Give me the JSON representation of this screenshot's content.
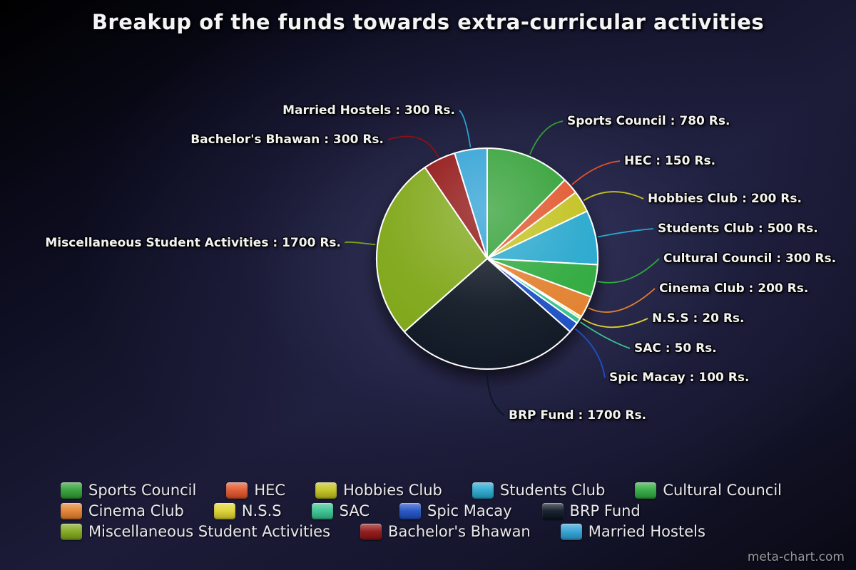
{
  "title": "Breakup of the funds towards extra-curricular activities",
  "watermark": "meta-chart.com",
  "chart_data": {
    "type": "pie",
    "title": "Breakup of the funds towards extra-curricular activities",
    "unit_suffix": "Rs.",
    "label_separator": " : ",
    "start_angle_deg": 0,
    "direction": "clockwise",
    "legend_position": "bottom",
    "slices": [
      {
        "label": "Sports Council",
        "value": 780,
        "color": "#2f9e33"
      },
      {
        "label": "HEC",
        "value": 150,
        "color": "#e0542a"
      },
      {
        "label": "Hobbies Club",
        "value": 200,
        "color": "#c2c11f"
      },
      {
        "label": "Students Club",
        "value": 500,
        "color": "#27a7cd"
      },
      {
        "label": "Cultural Council",
        "value": 300,
        "color": "#2fa93e"
      },
      {
        "label": "Cinema Club",
        "value": 200,
        "color": "#e2802d"
      },
      {
        "label": "N.S.S",
        "value": 20,
        "color": "#ddd22f"
      },
      {
        "label": "SAC",
        "value": 50,
        "color": "#36c28e"
      },
      {
        "label": "Spic Macay",
        "value": 100,
        "color": "#1e4fc4"
      },
      {
        "label": "BRP Fund",
        "value": 1700,
        "color": "#0c1622"
      },
      {
        "label": "Miscellaneous Student Activities",
        "value": 1700,
        "color": "#7ea619"
      },
      {
        "label": "Bachelor's Bhawan",
        "value": 300,
        "color": "#8e1111"
      },
      {
        "label": "Married Hostels",
        "value": 300,
        "color": "#2c9fd4"
      }
    ]
  }
}
